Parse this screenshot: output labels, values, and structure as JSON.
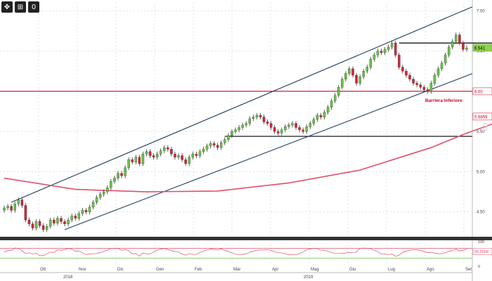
{
  "toolbar": {
    "buttons": [
      {
        "icon": "expand-icon",
        "glyph": "✥"
      },
      {
        "icon": "grid-icon",
        "glyph": "⊞"
      },
      {
        "icon": "info-icon",
        "glyph": "0"
      }
    ]
  },
  "chart_data": [
    {
      "type": "candlestick",
      "title": "",
      "ylim": [
        4.2,
        7.1
      ],
      "yticks": [
        "7.00",
        "6.50",
        "6.00",
        "5.50",
        "5.00",
        "4.50"
      ],
      "xticks": [
        "Ott",
        "Nov",
        "Dic",
        "Gen",
        "Feb",
        "Mar",
        "Apr",
        "Mag",
        "Giu",
        "Lug",
        "Ago",
        "Set"
      ],
      "years": [
        "2018",
        "2019"
      ],
      "series_close": [
        4.55,
        4.57,
        4.52,
        4.6,
        4.65,
        4.58,
        4.4,
        4.35,
        4.3,
        4.38,
        4.33,
        4.28,
        4.32,
        4.4,
        4.36,
        4.42,
        4.38,
        4.35,
        4.4,
        4.45,
        4.42,
        4.48,
        4.52,
        4.5,
        4.56,
        4.62,
        4.68,
        4.72,
        4.75,
        4.8,
        4.88,
        4.92,
        4.98,
        4.95,
        5.05,
        5.15,
        5.12,
        5.18,
        5.1,
        5.22,
        5.25,
        5.2,
        5.18,
        5.22,
        5.26,
        5.3,
        5.28,
        5.22,
        5.18,
        5.2,
        5.15,
        5.1,
        5.18,
        5.22,
        5.2,
        5.25,
        5.28,
        5.32,
        5.35,
        5.33,
        5.3,
        5.36,
        5.4,
        5.45,
        5.5,
        5.52,
        5.55,
        5.58,
        5.6,
        5.66,
        5.68,
        5.7,
        5.68,
        5.62,
        5.6,
        5.55,
        5.5,
        5.48,
        5.52,
        5.56,
        5.58,
        5.6,
        5.55,
        5.52,
        5.5,
        5.56,
        5.6,
        5.65,
        5.7,
        5.68,
        5.74,
        5.8,
        5.88,
        5.95,
        6.05,
        6.15,
        6.22,
        6.28,
        6.2,
        6.1,
        6.18,
        6.25,
        6.3,
        6.4,
        6.45,
        6.5,
        6.48,
        6.52,
        6.55,
        6.6,
        6.45,
        6.3,
        6.25,
        6.2,
        6.15,
        6.1,
        6.08,
        6.05,
        6.02,
        6.0,
        6.1,
        6.2,
        6.28,
        6.35,
        6.45,
        6.55,
        6.62,
        6.7,
        6.6,
        6.52,
        6.54
      ],
      "overlays": {
        "horizontal_lines": [
          {
            "label": "",
            "value": 6.6,
            "color": "#000000"
          },
          {
            "label": "6.00",
            "value": 6.0,
            "color": "#cc0022"
          },
          {
            "label": "",
            "value": 5.44,
            "color": "#000000"
          }
        ],
        "channel": {
          "color": "#1f3b5c"
        },
        "moving_average": {
          "color": "#e0506a",
          "points": [
            [
              0,
              4.92
            ],
            [
              20,
              4.78
            ],
            [
              40,
              4.75
            ],
            [
              60,
              4.76
            ],
            [
              80,
              4.86
            ],
            [
              100,
              5.02
            ],
            [
              120,
              5.3
            ],
            [
              130,
              5.48
            ],
            [
              139,
              5.62
            ]
          ]
        }
      },
      "price_labels": [
        {
          "text": "6.541",
          "bg": "#8fd14f"
        },
        {
          "text": "6.00",
          "bg": "#ffffff",
          "fg": "#cc0022"
        },
        {
          "text": "5.6859",
          "bg": "#ffffff",
          "fg": "#cc0022"
        }
      ],
      "annotations": [
        {
          "text": "Barriera Inferiore",
          "color": "#cc0022"
        }
      ]
    },
    {
      "type": "line",
      "title": "",
      "indicator": "RSI",
      "ylim": [
        0,
        100
      ],
      "yticks": [
        "100",
        "0"
      ],
      "value_label": "56.5568",
      "reference_lines": [
        {
          "value": 70,
          "color": "#e0506a"
        },
        {
          "value": 30,
          "color": "#6cc24a"
        }
      ]
    }
  ]
}
